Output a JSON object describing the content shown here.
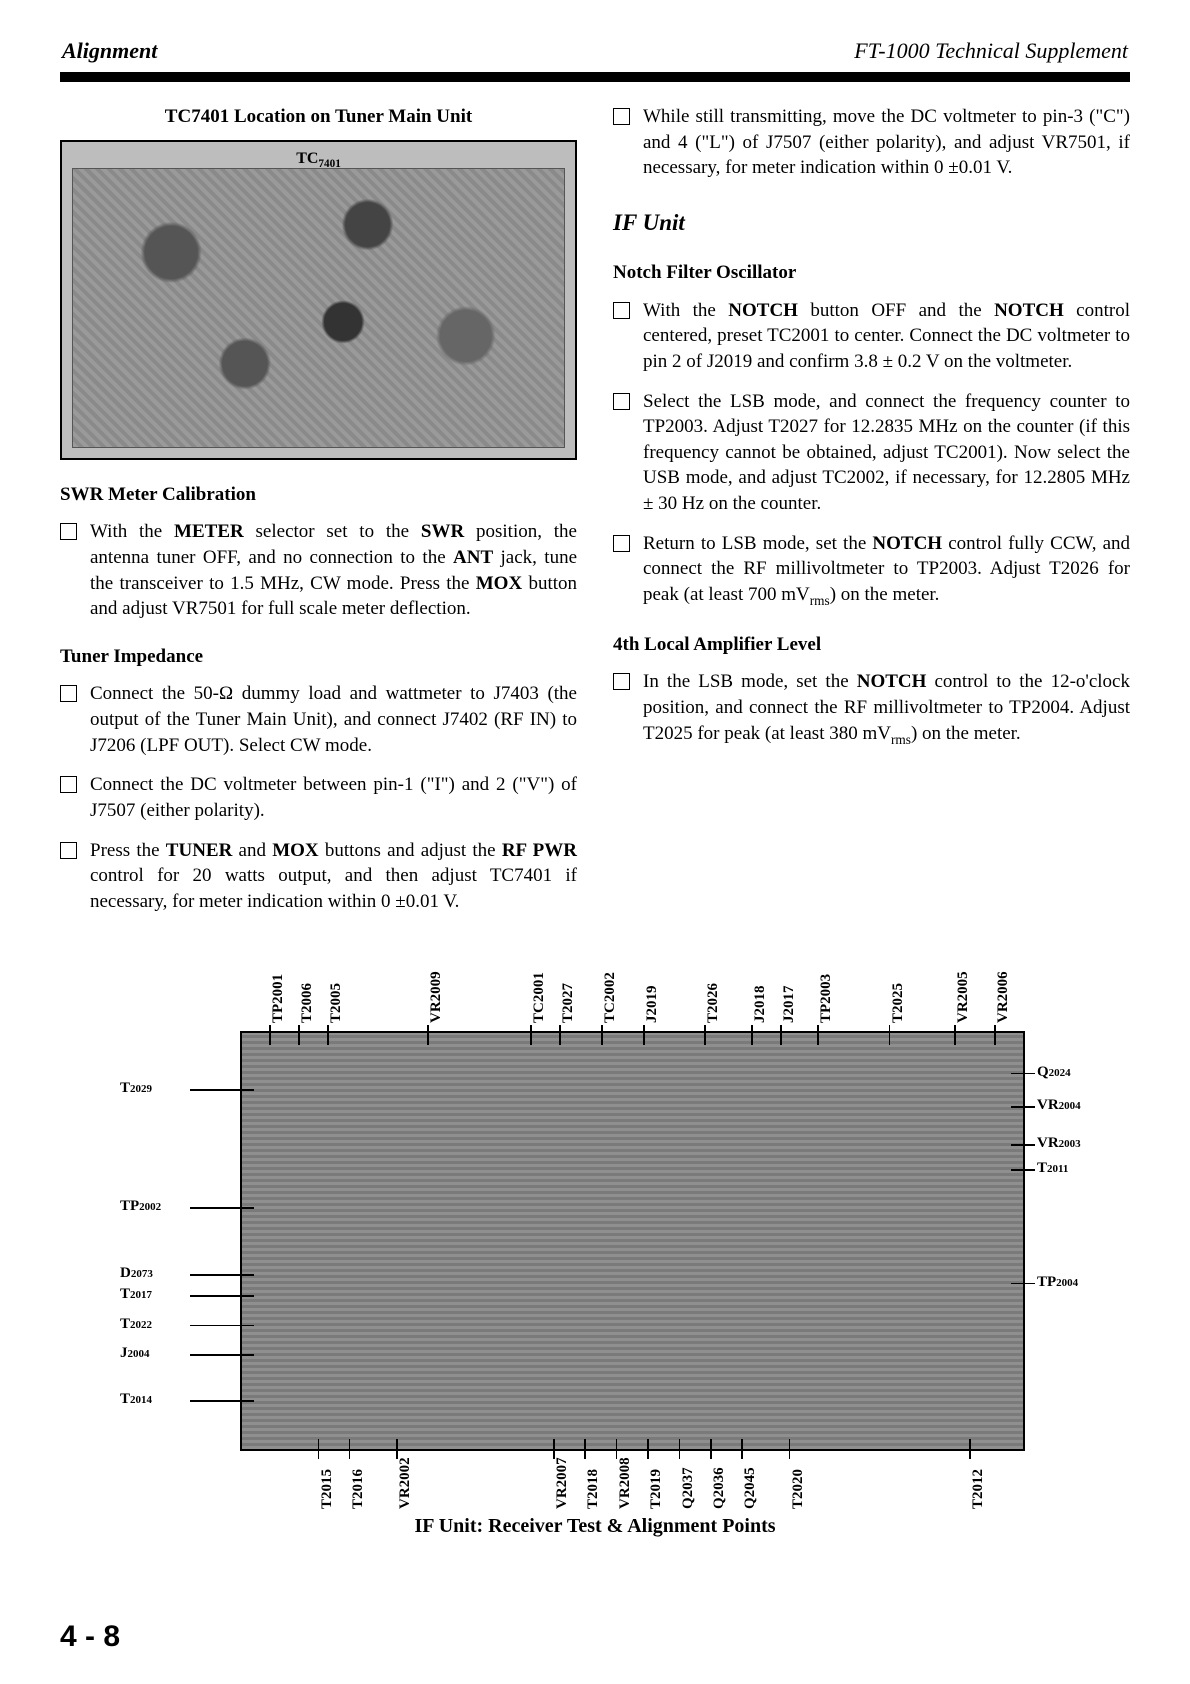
{
  "header": {
    "left": "Alignment",
    "right": "FT-1000 Technical Supplement"
  },
  "left_column": {
    "fig1_caption": "TC7401 Location on Tuner Main Unit",
    "fig1_label": "TC₇₄₀₁",
    "swr_title": "SWR Meter Calibration",
    "swr_item": "With the METER selector set to the SWR position, the antenna tuner OFF, and no connection to the ANT jack, tune the transceiver to 1.5 MHz, CW mode. Press the MOX button and adjust VR7501 for full scale meter deflection.",
    "imp_title": "Tuner Impedance",
    "imp_item1": "Connect the 50-Ω dummy load and wattmeter to J7403 (the output of the Tuner Main Unit), and connect J7402 (RF IN) to J7206 (LPF OUT). Select CW mode.",
    "imp_item2": "Connect the DC voltmeter between pin-1 (\"I\") and 2 (\"V\") of J7507 (either polarity).",
    "imp_item3": "Press the TUNER and MOX buttons and adjust the RF PWR control for 20 watts output, and then adjust TC7401 if necessary, for meter indication within 0 ±0.01 V."
  },
  "right_column": {
    "top_item": "While still transmitting, move the DC voltmeter to pin-3 (\"C\") and 4 (\"L\") of J7507 (either polarity), and adjust VR7501, if necessary, for meter indication within 0 ±0.01 V.",
    "if_title": "IF Unit",
    "notch_title": "Notch Filter Oscillator",
    "notch_item1": "With the NOTCH button OFF and the NOTCH control centered, preset TC2001 to center. Connect the DC voltmeter to pin 2 of J2019 and confirm 3.8 ± 0.2 V on the voltmeter.",
    "notch_item2": "Select the LSB mode, and connect the frequency counter to TP2003. Adjust T2027 for 12.2835 MHz on the counter (if this frequency cannot be obtained, adjust TC2001). Now select the USB mode, and adjust TC2002, if necessary, for 12.2805 MHz ± 30 Hz on the counter.",
    "notch_item3": "Return to LSB mode, set the NOTCH control fully CCW, and connect the RF millivoltmeter to TP2003. Adjust T2026 for peak (at least 700 mVrms) on the meter.",
    "fourth_title": "4th Local Amplifier Level",
    "fourth_item": "In the LSB mode, set the NOTCH control to the 12-o'clock position, and connect the RF millivoltmeter to TP2004. Adjust T2025 for peak (at least 380 mVrms) on the meter."
  },
  "bottom_figure": {
    "caption": "IF Unit: Receiver Test & Alignment Points",
    "top_labels": [
      "TP₂₀₀₁",
      "T₂₀₀₆",
      "T₂₀₀₅",
      "VR₂₀₀₉",
      "TC₂₀₀₁",
      "T₂₀₂₇",
      "TC₂₀₀₂",
      "J₂₀₁₉",
      "T₂₀₂₆",
      "J₂₀₁₈",
      "J₂₀₁₇",
      "TP₂₀₀₃",
      "T₂₀₂₅",
      "VR₂₀₀₅",
      "VR₂₀₀₆"
    ],
    "left_labels": [
      "T₂₀₂₉",
      "TP₂₀₀₂",
      "D₂₀₇₃",
      "T₂₀₁₇",
      "T₂₀₂₂",
      "J₂₀₀₄",
      "T₂₀₁₄"
    ],
    "right_labels": [
      "Q₂₀₂₄",
      "VR₂₀₀₄",
      "VR₂₀₀₃",
      "T₂₀₁₁",
      "TP₂₀₀₄"
    ],
    "bottom_labels": [
      "T₂₀₁₅",
      "T₂₀₁₆",
      "VR₂₀₀₂",
      "VR₂₀₀₇",
      "T₂₀₁₈",
      "VR₂₀₀₈",
      "T₂₀₁₉",
      "Q₂₀₃₇",
      "Q₂₀₃₆",
      "Q₂₀₄₅",
      "T₂₀₂₀",
      "T₂₀₁₂"
    ]
  },
  "page_number": "4 - 8"
}
